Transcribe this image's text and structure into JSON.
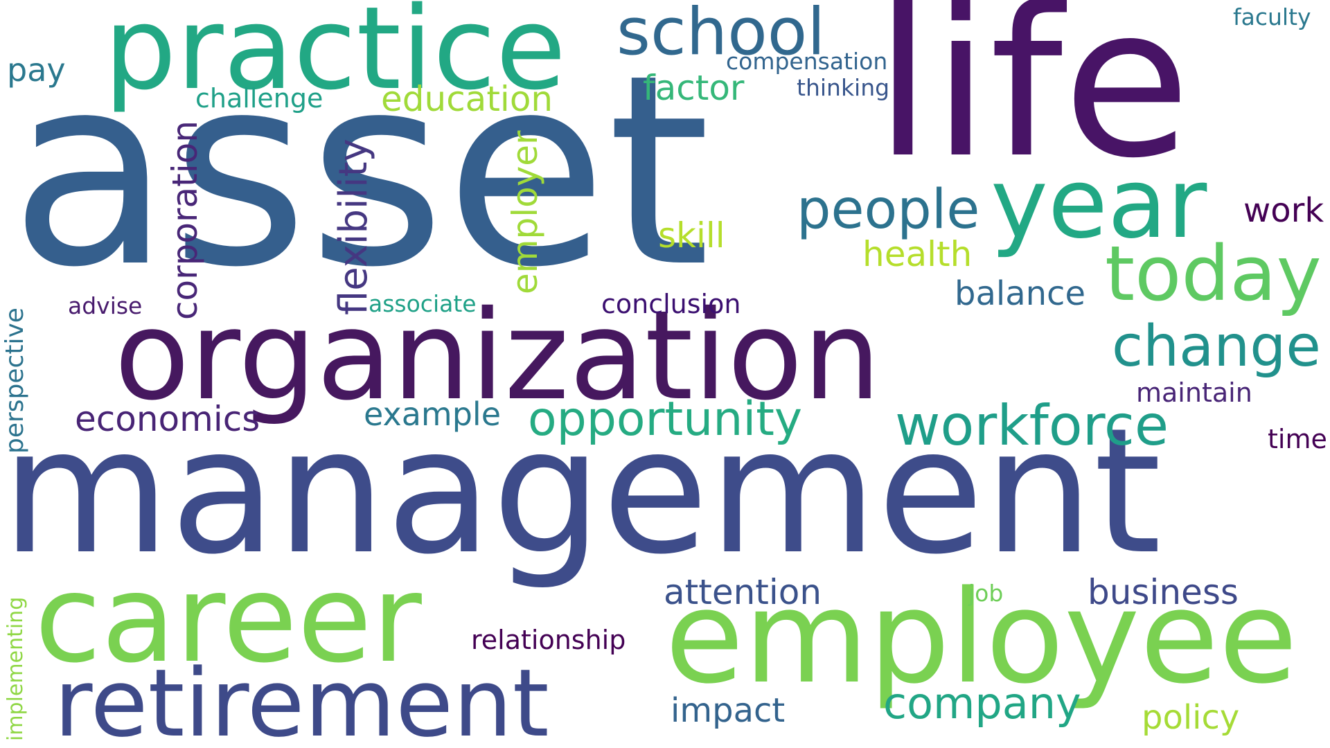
{
  "cloud": {
    "background": "#ffffff",
    "words": [
      {
        "text": "asset",
        "color": "#355f8d"
      },
      {
        "text": "management",
        "color": "#3e4c8a"
      },
      {
        "text": "life",
        "color": "#481466"
      },
      {
        "text": "organization",
        "color": "#46185f"
      },
      {
        "text": "practice",
        "color": "#22a884"
      },
      {
        "text": "employee",
        "color": "#7ad151"
      },
      {
        "text": "career",
        "color": "#7ad151"
      },
      {
        "text": "retirement",
        "color": "#3e4a89"
      },
      {
        "text": "year",
        "color": "#22a884"
      },
      {
        "text": "today",
        "color": "#5ec962"
      },
      {
        "text": "school",
        "color": "#31688e"
      },
      {
        "text": "people",
        "color": "#2c728e"
      },
      {
        "text": "change",
        "color": "#21918c"
      },
      {
        "text": "workforce",
        "color": "#1f9e89"
      },
      {
        "text": "opportunity",
        "color": "#25ab82"
      },
      {
        "text": "company",
        "color": "#21a685"
      },
      {
        "text": "business",
        "color": "#3e4989"
      },
      {
        "text": "attention",
        "color": "#3b528b"
      },
      {
        "text": "economics",
        "color": "#482475"
      },
      {
        "text": "education",
        "color": "#a0da39"
      },
      {
        "text": "factor",
        "color": "#35b779"
      },
      {
        "text": "skill",
        "color": "#b5de2b"
      },
      {
        "text": "health",
        "color": "#b5de2b"
      },
      {
        "text": "balance",
        "color": "#31688e"
      },
      {
        "text": "work",
        "color": "#440154"
      },
      {
        "text": "impact",
        "color": "#33638d"
      },
      {
        "text": "policy",
        "color": "#a5db36"
      },
      {
        "text": "example",
        "color": "#2a788e"
      },
      {
        "text": "conclusion",
        "color": "#3b0f70"
      },
      {
        "text": "maintain",
        "color": "#482576"
      },
      {
        "text": "time",
        "color": "#440154"
      },
      {
        "text": "relationship",
        "color": "#440154"
      },
      {
        "text": "challenge",
        "color": "#1fa088"
      },
      {
        "text": "compensation",
        "color": "#32648e"
      },
      {
        "text": "thinking",
        "color": "#39568c"
      },
      {
        "text": "faculty",
        "color": "#2a788e"
      },
      {
        "text": "pay",
        "color": "#2a788e"
      },
      {
        "text": "advise",
        "color": "#481b6d"
      },
      {
        "text": "associate",
        "color": "#1fa187"
      },
      {
        "text": "job",
        "color": "#6ece58"
      },
      {
        "text": "flexibility",
        "color": "#453781"
      },
      {
        "text": "corporation",
        "color": "#482677"
      },
      {
        "text": "employer",
        "color": "#a0da39"
      },
      {
        "text": "perspective",
        "color": "#2c738e"
      },
      {
        "text": "implementing",
        "color": "#8fd744"
      }
    ]
  }
}
